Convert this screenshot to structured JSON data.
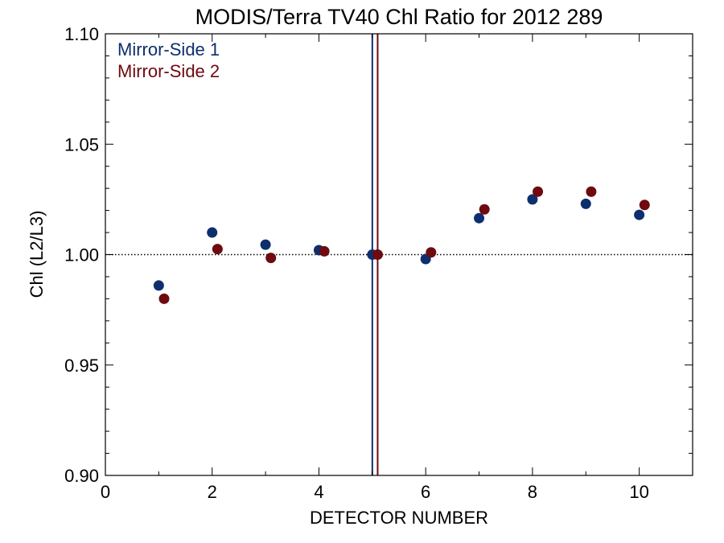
{
  "chart_data": {
    "type": "scatter",
    "title": "MODIS/Terra TV40 Chl Ratio for 2012 289",
    "xlabel": "DETECTOR NUMBER",
    "ylabel": "Chl (L2/L3)",
    "xlim": [
      0,
      11
    ],
    "ylim": [
      0.9,
      1.1
    ],
    "x_ticks": [
      0,
      2,
      4,
      6,
      8,
      10
    ],
    "x_tick_labels": [
      "0",
      "2",
      "4",
      "6",
      "8",
      "10"
    ],
    "y_ticks": [
      0.9,
      0.95,
      1.0,
      1.05,
      1.1
    ],
    "y_tick_labels": [
      "0.90",
      "0.95",
      "1.00",
      "1.05",
      "1.10"
    ],
    "reference_line": {
      "y": 1.0,
      "style": "dotted"
    },
    "grid": false,
    "legend_position": "top-left",
    "series": [
      {
        "name": "Mirror-Side 1",
        "color": "#0d2f6e",
        "x": [
          1,
          2,
          3,
          4,
          5,
          6,
          7,
          8,
          9,
          10
        ],
        "y": [
          0.986,
          1.01,
          1.0045,
          1.002,
          1.0,
          0.998,
          1.0165,
          1.025,
          1.023,
          1.018
        ],
        "vline_x": 5.0
      },
      {
        "name": "Mirror-Side 2",
        "color": "#6e0a10",
        "x": [
          1.1,
          2.1,
          3.1,
          4.1,
          5.1,
          6.1,
          7.1,
          8.1,
          9.1,
          10.1
        ],
        "y": [
          0.98,
          1.0025,
          0.9985,
          1.0015,
          1.0,
          1.001,
          1.0205,
          1.0285,
          1.0285,
          1.0225
        ],
        "vline_x": 5.1
      }
    ]
  }
}
